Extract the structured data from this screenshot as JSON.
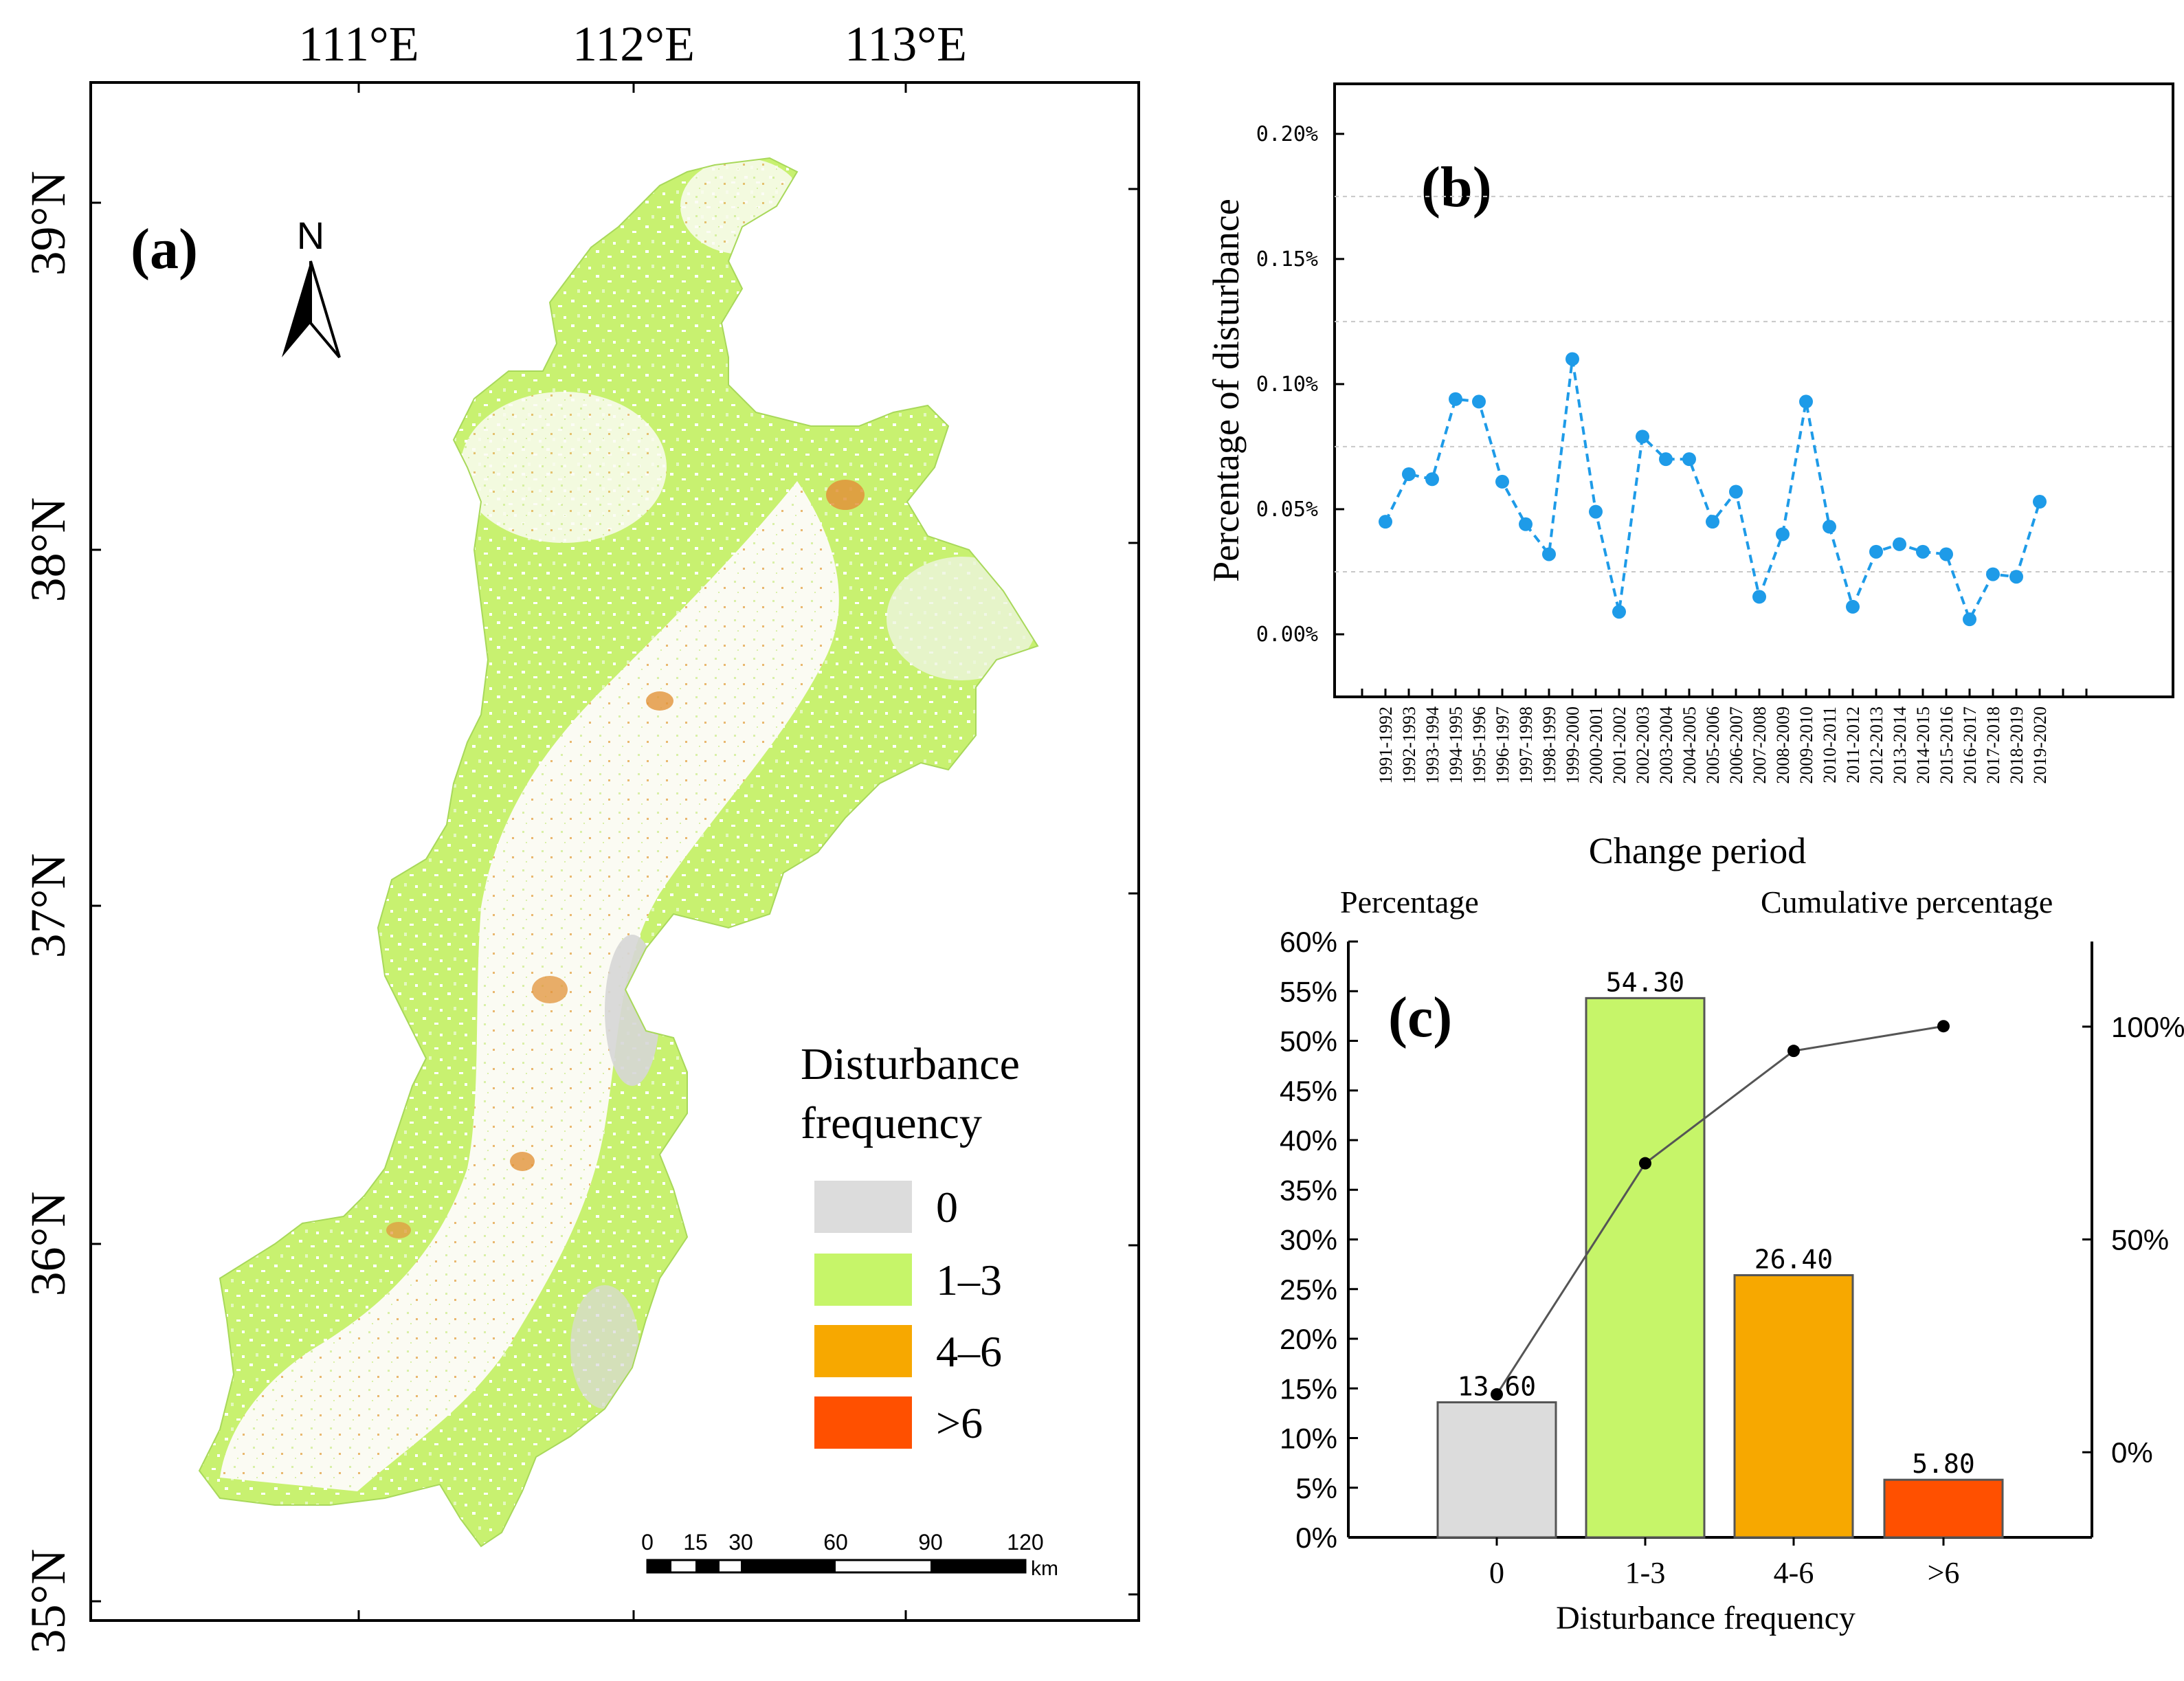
{
  "colors": {
    "freq_0": "#dcdcdc",
    "freq_1_3": "#c6f569",
    "freq_4_6": "#f7a800",
    "freq_gt6": "#ff5000",
    "line_b": "#1e9be8",
    "cum_line": "#555555"
  },
  "panel_a": {
    "label": "(a)",
    "top_ticks": [
      "111°E",
      "112°E",
      "113°E"
    ],
    "left_ticks": [
      "39°N",
      "38°N",
      "37°N",
      "36°N",
      "35°N"
    ],
    "north_label": "N",
    "legend": {
      "title_line1": "Disturbance",
      "title_line2": "frequency",
      "items": [
        {
          "label": "0",
          "color_key": "freq_0"
        },
        {
          "label": "1–3",
          "color_key": "freq_1_3"
        },
        {
          "label": "4–6",
          "color_key": "freq_4_6"
        },
        {
          "label": ">6",
          "color_key": "freq_gt6"
        }
      ]
    },
    "scalebar": {
      "ticks": [
        "0",
        "15",
        "30",
        "60",
        "90",
        "120"
      ],
      "unit": "km"
    }
  },
  "chart_data": [
    {
      "type": "line",
      "panel": "(b)",
      "title": "(b)",
      "xlabel": "Change period",
      "ylabel": "Percentage of disturbance",
      "ylim": [
        -0.025,
        0.22
      ],
      "yticks": [
        "0.00%",
        "0.05%",
        "0.10%",
        "0.15%",
        "0.20%"
      ],
      "categories": [
        "1991-1992",
        "1992-1993",
        "1993-1994",
        "1994-1995",
        "1995-1996",
        "1996-1997",
        "1997-1998",
        "1998-1999",
        "1999-2000",
        "2000-2001",
        "2001-2002",
        "2002-2003",
        "2003-2004",
        "2004-2005",
        "2005-2006",
        "2006-2007",
        "2007-2008",
        "2008-2009",
        "2009-2010",
        "2010-2011",
        "2011-2012",
        "2012-2013",
        "2013-2014",
        "2014-2015",
        "2015-2016",
        "2016-2017",
        "2017-2018",
        "2018-2019",
        "2019-2020"
      ],
      "values": [
        0.045,
        0.064,
        0.062,
        0.094,
        0.093,
        0.061,
        0.044,
        0.032,
        0.11,
        0.049,
        0.009,
        0.079,
        0.07,
        0.07,
        0.045,
        0.057,
        0.015,
        0.04,
        0.093,
        0.043,
        0.011,
        0.033,
        0.036,
        0.033,
        0.032,
        0.006,
        0.024,
        0.023,
        0.053
      ],
      "grid_lines": [
        0.025,
        0.075,
        0.125,
        0.175
      ]
    },
    {
      "type": "bar",
      "panel": "(c)",
      "title": "(c)",
      "xlabel": "Disturbance  frequency",
      "ylabel_left": "Percentage",
      "ylabel_right": "Cumulative percentage",
      "categories": [
        "0",
        "1-3",
        "4-6",
        ">6"
      ],
      "values": [
        13.6,
        54.3,
        26.4,
        5.8
      ],
      "value_labels": [
        "13.60",
        "54.30",
        "26.40",
        "5.80"
      ],
      "ylim": [
        0,
        60
      ],
      "yticks": [
        "0%",
        "5%",
        "10%",
        "15%",
        "20%",
        "25%",
        "30%",
        "35%",
        "40%",
        "45%",
        "50%",
        "55%",
        "60%"
      ],
      "cumulative": [
        13.6,
        67.9,
        94.3,
        100.1
      ],
      "right_ylim": [
        -20,
        120
      ],
      "right_yticks": [
        "0%",
        "50%",
        "100%"
      ]
    }
  ]
}
